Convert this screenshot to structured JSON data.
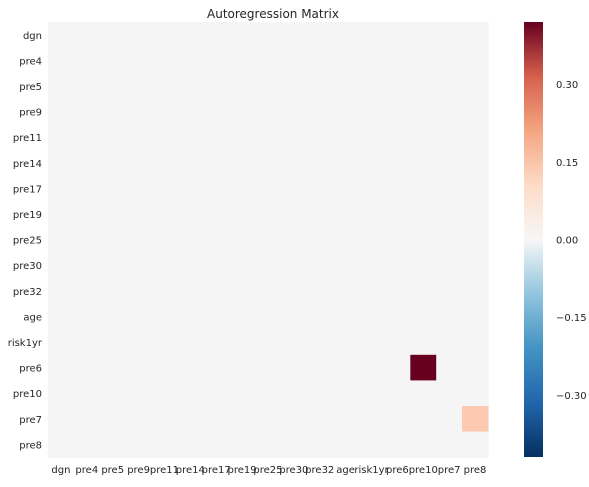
{
  "chart_data": {
    "type": "heatmap",
    "title": "Autoregression Matrix",
    "xlabel": "",
    "ylabel": "",
    "row_labels": [
      "dgn",
      "pre4",
      "pre5",
      "pre9",
      "pre11",
      "pre14",
      "pre17",
      "pre19",
      "pre25",
      "pre30",
      "pre32",
      "age",
      "risk1yr",
      "pre6",
      "pre10",
      "pre7",
      "pre8"
    ],
    "col_labels": [
      "dgn",
      "pre4",
      "pre5",
      "pre9",
      "pre11",
      "pre14",
      "pre17",
      "pre19",
      "pre25",
      "pre30",
      "pre32",
      "age",
      "risk1yr",
      "pre6",
      "pre10",
      "pre7",
      "pre8"
    ],
    "values": [
      [
        0,
        0,
        0,
        0,
        0,
        0,
        0,
        0,
        0,
        0,
        0,
        0,
        0,
        0,
        0,
        0,
        0
      ],
      [
        0,
        0,
        0,
        0,
        0,
        0,
        0,
        0,
        0,
        0,
        0,
        0,
        0,
        0,
        0,
        0,
        0
      ],
      [
        0,
        0,
        0,
        0,
        0,
        0,
        0,
        0,
        0,
        0,
        0,
        0,
        0,
        0,
        0,
        0,
        0
      ],
      [
        0,
        0,
        0,
        0,
        0,
        0,
        0,
        0,
        0,
        0,
        0,
        0,
        0,
        0,
        0,
        0,
        0
      ],
      [
        0,
        0,
        0,
        0,
        0,
        0,
        0,
        0,
        0,
        0,
        0,
        0,
        0,
        0,
        0,
        0,
        0
      ],
      [
        0,
        0,
        0,
        0,
        0,
        0,
        0,
        0,
        0,
        0,
        0,
        0,
        0,
        0,
        0,
        0,
        0
      ],
      [
        0,
        0,
        0,
        0,
        0,
        0,
        0,
        0,
        0,
        0,
        0,
        0,
        0,
        0,
        0,
        0,
        0
      ],
      [
        0,
        0,
        0,
        0,
        0,
        0,
        0,
        0,
        0,
        0,
        0,
        0,
        0,
        0,
        0,
        0,
        0
      ],
      [
        0,
        0,
        0,
        0,
        0,
        0,
        0,
        0,
        0,
        0,
        0,
        0,
        0,
        0,
        0,
        0,
        0
      ],
      [
        0,
        0,
        0,
        0,
        0,
        0,
        0,
        0,
        0,
        0,
        0,
        0,
        0,
        0,
        0,
        0,
        0
      ],
      [
        0,
        0,
        0,
        0,
        0,
        0,
        0,
        0,
        0,
        0,
        0,
        0,
        0,
        0,
        0,
        0,
        0
      ],
      [
        0,
        0,
        0,
        0,
        0,
        0,
        0,
        0,
        0,
        0,
        0,
        0,
        0,
        0,
        0,
        0,
        0
      ],
      [
        0,
        0,
        0,
        0,
        0,
        0,
        0,
        0,
        0,
        0,
        0,
        0,
        0,
        0,
        0,
        0,
        0
      ],
      [
        0,
        0,
        0,
        0,
        0,
        0,
        0,
        0,
        0,
        0,
        0,
        0,
        0,
        0,
        0.42,
        0,
        0
      ],
      [
        0,
        0,
        0,
        0,
        0,
        0,
        0,
        0,
        0,
        0,
        0,
        0,
        0,
        0,
        0,
        0,
        0
      ],
      [
        0,
        0,
        0,
        0,
        0,
        0,
        0,
        0,
        0,
        0,
        0,
        0,
        0,
        0,
        0,
        0,
        0.14
      ],
      [
        0,
        0,
        0,
        0,
        0,
        0,
        0,
        0,
        0,
        0,
        0,
        0,
        0,
        0,
        0,
        0,
        0
      ]
    ],
    "colorbar": {
      "vmin": -0.42,
      "vmax": 0.42,
      "ticks": [
        -0.3,
        -0.15,
        0.0,
        0.15,
        0.3
      ],
      "tick_labels": [
        "−0.30",
        "−0.15",
        "0.00",
        "0.15",
        "0.30"
      ],
      "colormap": "RdBu_r"
    },
    "grid": false,
    "legend": "colorbar-right"
  }
}
